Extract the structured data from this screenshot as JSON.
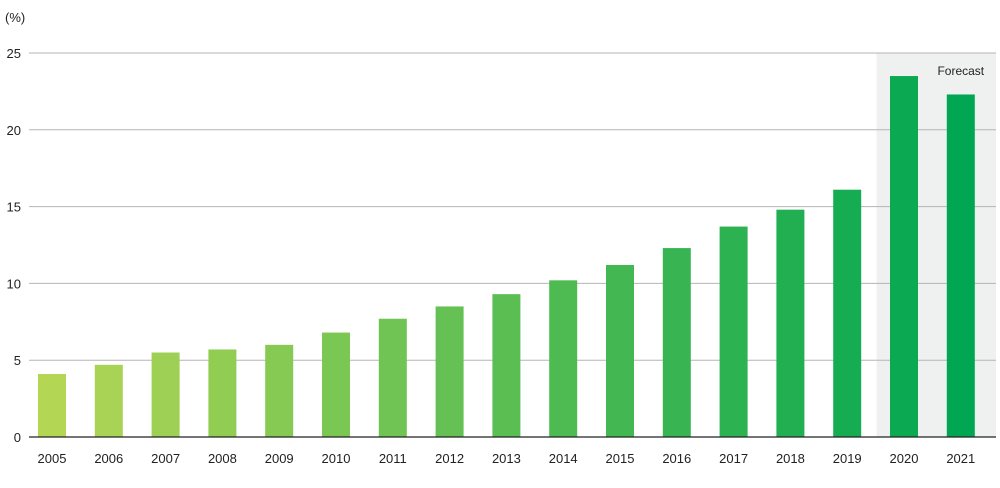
{
  "chart_data": {
    "type": "bar",
    "unit_label": "(%)",
    "categories": [
      "2005",
      "2006",
      "2007",
      "2008",
      "2009",
      "2010",
      "2011",
      "2012",
      "2013",
      "2014",
      "2015",
      "2016",
      "2017",
      "2018",
      "2019",
      "2020",
      "2021"
    ],
    "values": [
      4.1,
      4.7,
      5.5,
      5.7,
      6.0,
      6.8,
      7.7,
      8.5,
      9.3,
      10.2,
      11.2,
      12.3,
      13.7,
      14.8,
      16.1,
      23.5,
      22.3
    ],
    "ylim": [
      0,
      25
    ],
    "yticks": [
      0,
      5,
      10,
      15,
      20,
      25
    ],
    "grid": true,
    "forecast": {
      "label": "Forecast",
      "from": "2020",
      "to": "2021"
    },
    "colors": {
      "bar_start": "#b3d654",
      "bar_end": "#00a651",
      "forecast_band": "#eff1f0",
      "grid": "#b5b5b5",
      "axis": "#222222"
    }
  }
}
